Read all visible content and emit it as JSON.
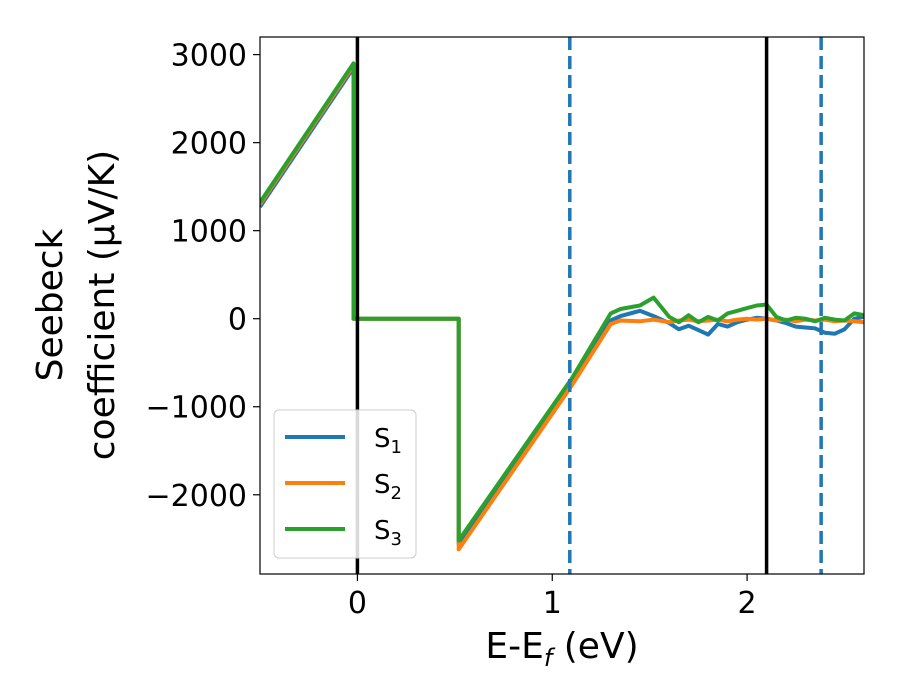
{
  "chart_data": {
    "type": "line",
    "title": "",
    "xlabel": "E-E",
    "xlabel_sub": "f",
    "xlabel_suffix": " (eV)",
    "ylabel_line1": "Seebeck",
    "ylabel_line2": "coefficient  (μV/K)",
    "xlim": [
      -0.5,
      2.6
    ],
    "ylim": [
      -2900,
      3200
    ],
    "xticks": [
      0,
      1,
      2
    ],
    "xtick_labels": [
      "0",
      "1",
      "2"
    ],
    "yticks": [
      3000,
      2000,
      1000,
      0,
      -1000,
      -2000
    ],
    "ytick_labels": [
      "3000",
      "2000",
      "1000",
      "0",
      "−1000",
      "−2000"
    ],
    "legend_position": "lower-left",
    "grid": false,
    "vlines": [
      {
        "x": 0.0,
        "style": "solid",
        "color": "#000000"
      },
      {
        "x": 2.1,
        "style": "solid",
        "color": "#000000"
      },
      {
        "x": 1.09,
        "style": "dashed",
        "color": "#1f77b4"
      },
      {
        "x": 2.38,
        "style": "dashed",
        "color": "#1f77b4"
      }
    ],
    "series": [
      {
        "name": "S",
        "sub": "1",
        "color": "#1f77b4",
        "x": [
          -0.5,
          -0.02,
          -0.02,
          0.0,
          0.52,
          0.52,
          1.1,
          1.3,
          1.35,
          1.45,
          1.52,
          1.6,
          1.65,
          1.7,
          1.75,
          1.8,
          1.85,
          1.9,
          1.95,
          2.0,
          2.05,
          2.1,
          2.15,
          2.2,
          2.25,
          2.3,
          2.35,
          2.4,
          2.45,
          2.5,
          2.55,
          2.6
        ],
        "y": [
          1270,
          2850,
          0,
          0,
          0,
          -2560,
          -700,
          -20,
          30,
          90,
          30,
          -50,
          -120,
          -80,
          -130,
          -180,
          -60,
          -90,
          -40,
          -10,
          10,
          0,
          -20,
          -50,
          -90,
          -100,
          -110,
          -160,
          -170,
          -120,
          0,
          20
        ]
      },
      {
        "name": "S",
        "sub": "2",
        "color": "#ff7f0e",
        "x": [
          -0.5,
          -0.02,
          -0.02,
          0.0,
          0.52,
          0.52,
          1.1,
          1.3,
          1.35,
          1.45,
          1.52,
          1.6,
          1.65,
          1.7,
          1.75,
          1.8,
          1.85,
          1.9,
          1.95,
          2.0,
          2.05,
          2.1,
          2.15,
          2.2,
          2.25,
          2.3,
          2.35,
          2.4,
          2.45,
          2.5,
          2.55,
          2.6
        ],
        "y": [
          1300,
          2880,
          0,
          0,
          0,
          -2620,
          -760,
          -60,
          -20,
          -30,
          -10,
          -40,
          -20,
          -10,
          -30,
          -20,
          -10,
          -30,
          -10,
          0,
          -10,
          0,
          -20,
          -10,
          -30,
          -10,
          -20,
          -10,
          -30,
          -20,
          -30,
          -40
        ]
      },
      {
        "name": "S",
        "sub": "3",
        "color": "#2ca02c",
        "x": [
          -0.5,
          -0.02,
          -0.02,
          0.0,
          0.52,
          0.52,
          1.1,
          1.3,
          1.35,
          1.45,
          1.52,
          1.6,
          1.65,
          1.7,
          1.75,
          1.8,
          1.85,
          1.9,
          1.95,
          2.0,
          2.05,
          2.1,
          2.15,
          2.2,
          2.25,
          2.3,
          2.35,
          2.4,
          2.45,
          2.5,
          2.55,
          2.6
        ],
        "y": [
          1320,
          2900,
          0,
          0,
          0,
          -2520,
          -680,
          60,
          110,
          150,
          240,
          20,
          -40,
          40,
          -40,
          20,
          -20,
          60,
          90,
          120,
          150,
          160,
          20,
          -20,
          10,
          0,
          -30,
          10,
          -10,
          -20,
          60,
          40
        ]
      }
    ]
  }
}
